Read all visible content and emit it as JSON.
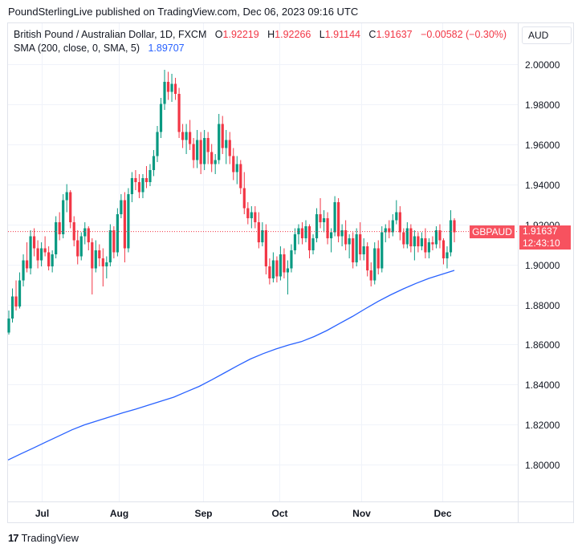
{
  "header": {
    "text": "PoundSterlingLive published on TradingView.com, Dec 06, 2023 09:16 UTC"
  },
  "legend": {
    "title": "British Pound / Australian Dollar, 1D, FXCM",
    "o_label": "O",
    "o_value": "1.92219",
    "h_label": "H",
    "h_value": "1.92266",
    "l_label": "L",
    "l_value": "1.91144",
    "c_label": "C",
    "c_value": "1.91637",
    "change": "−0.00582 (−0.30%)",
    "sma_label": "SMA (200, close, 0, SMA, 5)",
    "sma_value": "1.89707"
  },
  "currency_button": "AUD",
  "price_tag": {
    "price": "1.91637",
    "countdown": "12:43:10",
    "symbol": "GBPAUD"
  },
  "footer": {
    "brand": "TradingView",
    "logo_text": "17"
  },
  "colors": {
    "up": "#089981",
    "down": "#f23645",
    "sma": "#2962ff",
    "grid": "#f0f3fa"
  },
  "chart_data": {
    "type": "candlestick",
    "title": "British Pound / Australian Dollar, 1D, FXCM",
    "y_ticks": [
      "2.00000",
      "1.98000",
      "1.96000",
      "1.94000",
      "1.92000",
      "1.90000",
      "1.88000",
      "1.86000",
      "1.84000",
      "1.82000",
      "1.80000"
    ],
    "ylim": [
      1.7825,
      2.0075
    ],
    "x_ticks": [
      "Jul",
      "Aug",
      "Sep",
      "Oct",
      "Nov",
      "Dec"
    ],
    "last_price": 1.91637,
    "ohlc": [
      [
        1.866,
        1.877,
        1.865,
        1.873
      ],
      [
        1.873,
        1.888,
        1.871,
        1.884
      ],
      [
        1.884,
        1.892,
        1.877,
        1.879
      ],
      [
        1.879,
        1.896,
        1.878,
        1.892
      ],
      [
        1.892,
        1.905,
        1.889,
        1.902
      ],
      [
        1.902,
        1.911,
        1.896,
        1.898
      ],
      [
        1.898,
        1.917,
        1.895,
        1.914
      ],
      [
        1.914,
        1.918,
        1.904,
        1.908
      ],
      [
        1.908,
        1.912,
        1.898,
        1.902
      ],
      [
        1.902,
        1.911,
        1.899,
        1.908
      ],
      [
        1.908,
        1.914,
        1.904,
        1.906
      ],
      [
        1.906,
        1.909,
        1.897,
        1.899
      ],
      [
        1.899,
        1.907,
        1.896,
        1.905
      ],
      [
        1.905,
        1.924,
        1.903,
        1.921
      ],
      [
        1.921,
        1.926,
        1.912,
        1.915
      ],
      [
        1.915,
        1.935,
        1.913,
        1.932
      ],
      [
        1.932,
        1.94,
        1.926,
        1.936
      ],
      [
        1.936,
        1.937,
        1.918,
        1.921
      ],
      [
        1.921,
        1.924,
        1.909,
        1.912
      ],
      [
        1.912,
        1.917,
        1.9,
        1.904
      ],
      [
        1.904,
        1.916,
        1.902,
        1.914
      ],
      [
        1.914,
        1.921,
        1.91,
        1.918
      ],
      [
        1.918,
        1.919,
        1.907,
        1.911
      ],
      [
        1.911,
        1.913,
        1.885,
        1.898
      ],
      [
        1.898,
        1.912,
        1.896,
        1.907
      ],
      [
        1.907,
        1.91,
        1.899,
        1.903
      ],
      [
        1.903,
        1.908,
        1.889,
        1.899
      ],
      [
        1.899,
        1.904,
        1.893,
        1.901
      ],
      [
        1.901,
        1.92,
        1.899,
        1.917
      ],
      [
        1.917,
        1.919,
        1.903,
        1.906
      ],
      [
        1.906,
        1.928,
        1.904,
        1.925
      ],
      [
        1.925,
        1.935,
        1.923,
        1.932
      ],
      [
        1.932,
        1.936,
        1.901,
        1.908
      ],
      [
        1.908,
        1.938,
        1.906,
        1.935
      ],
      [
        1.935,
        1.946,
        1.931,
        1.943
      ],
      [
        1.943,
        1.947,
        1.937,
        1.941
      ],
      [
        1.941,
        1.945,
        1.933,
        1.936
      ],
      [
        1.936,
        1.945,
        1.933,
        1.943
      ],
      [
        1.943,
        1.949,
        1.938,
        1.941
      ],
      [
        1.941,
        1.95,
        1.939,
        1.947
      ],
      [
        1.947,
        1.957,
        1.944,
        1.954
      ],
      [
        1.954,
        1.969,
        1.951,
        1.966
      ],
      [
        1.966,
        1.983,
        1.963,
        1.98
      ],
      [
        1.98,
        1.997,
        1.977,
        1.991
      ],
      [
        1.991,
        1.996,
        1.982,
        1.986
      ],
      [
        1.986,
        1.995,
        1.981,
        1.99
      ],
      [
        1.99,
        1.993,
        1.982,
        1.985
      ],
      [
        1.985,
        1.988,
        1.963,
        1.966
      ],
      [
        1.966,
        1.97,
        1.958,
        1.962
      ],
      [
        1.962,
        1.97,
        1.955,
        1.966
      ],
      [
        1.966,
        1.972,
        1.957,
        1.96
      ],
      [
        1.96,
        1.963,
        1.948,
        1.952
      ],
      [
        1.952,
        1.967,
        1.948,
        1.962
      ],
      [
        1.962,
        1.966,
        1.945,
        1.95
      ],
      [
        1.95,
        1.967,
        1.947,
        1.963
      ],
      [
        1.963,
        1.966,
        1.95,
        1.956
      ],
      [
        1.956,
        1.96,
        1.946,
        1.95
      ],
      [
        1.95,
        1.955,
        1.945,
        1.952
      ],
      [
        1.952,
        1.975,
        1.95,
        1.97
      ],
      [
        1.97,
        1.974,
        1.955,
        1.958
      ],
      [
        1.958,
        1.967,
        1.95,
        1.962
      ],
      [
        1.962,
        1.966,
        1.95,
        1.954
      ],
      [
        1.954,
        1.958,
        1.942,
        1.946
      ],
      [
        1.946,
        1.954,
        1.94,
        1.95
      ],
      [
        1.95,
        1.952,
        1.935,
        1.938
      ],
      [
        1.938,
        1.946,
        1.925,
        1.928
      ],
      [
        1.928,
        1.931,
        1.92,
        1.923
      ],
      [
        1.923,
        1.929,
        1.918,
        1.926
      ],
      [
        1.926,
        1.929,
        1.918,
        1.921
      ],
      [
        1.921,
        1.926,
        1.908,
        1.911
      ],
      [
        1.911,
        1.921,
        1.909,
        1.917
      ],
      [
        1.917,
        1.92,
        1.895,
        1.899
      ],
      [
        1.899,
        1.903,
        1.89,
        1.893
      ],
      [
        1.893,
        1.906,
        1.891,
        1.902
      ],
      [
        1.902,
        1.904,
        1.891,
        1.894
      ],
      [
        1.894,
        1.909,
        1.892,
        1.905
      ],
      [
        1.905,
        1.908,
        1.893,
        1.896
      ],
      [
        1.896,
        1.902,
        1.885,
        1.898
      ],
      [
        1.898,
        1.91,
        1.896,
        1.907
      ],
      [
        1.907,
        1.918,
        1.905,
        1.915
      ],
      [
        1.915,
        1.92,
        1.91,
        1.918
      ],
      [
        1.918,
        1.921,
        1.91,
        1.913
      ],
      [
        1.913,
        1.922,
        1.911,
        1.919
      ],
      [
        1.919,
        1.92,
        1.903,
        1.907
      ],
      [
        1.907,
        1.915,
        1.905,
        1.913
      ],
      [
        1.913,
        1.928,
        1.911,
        1.925
      ],
      [
        1.925,
        1.933,
        1.918,
        1.921
      ],
      [
        1.921,
        1.927,
        1.916,
        1.923
      ],
      [
        1.923,
        1.926,
        1.91,
        1.913
      ],
      [
        1.913,
        1.918,
        1.906,
        1.916
      ],
      [
        1.916,
        1.934,
        1.914,
        1.931
      ],
      [
        1.931,
        1.933,
        1.911,
        1.914
      ],
      [
        1.914,
        1.92,
        1.909,
        1.917
      ],
      [
        1.917,
        1.922,
        1.907,
        1.91
      ],
      [
        1.91,
        1.915,
        1.903,
        1.913
      ],
      [
        1.913,
        1.916,
        1.898,
        1.901
      ],
      [
        1.901,
        1.918,
        1.899,
        1.915
      ],
      [
        1.915,
        1.921,
        1.902,
        1.905
      ],
      [
        1.905,
        1.913,
        1.902,
        1.909
      ],
      [
        1.909,
        1.911,
        1.894,
        1.897
      ],
      [
        1.897,
        1.901,
        1.889,
        1.892
      ],
      [
        1.892,
        1.911,
        1.89,
        1.908
      ],
      [
        1.908,
        1.912,
        1.895,
        1.898
      ],
      [
        1.898,
        1.919,
        1.896,
        1.916
      ],
      [
        1.916,
        1.92,
        1.911,
        1.918
      ],
      [
        1.918,
        1.922,
        1.913,
        1.916
      ],
      [
        1.916,
        1.925,
        1.914,
        1.922
      ],
      [
        1.922,
        1.932,
        1.92,
        1.926
      ],
      [
        1.926,
        1.929,
        1.912,
        1.916
      ],
      [
        1.916,
        1.918,
        1.908,
        1.91
      ],
      [
        1.91,
        1.921,
        1.908,
        1.918
      ],
      [
        1.918,
        1.92,
        1.906,
        1.909
      ],
      [
        1.909,
        1.917,
        1.902,
        1.914
      ],
      [
        1.914,
        1.916,
        1.906,
        1.909
      ],
      [
        1.909,
        1.916,
        1.907,
        1.913
      ],
      [
        1.913,
        1.918,
        1.903,
        1.906
      ],
      [
        1.906,
        1.913,
        1.903,
        1.911
      ],
      [
        1.911,
        1.914,
        1.907,
        1.91
      ],
      [
        1.91,
        1.919,
        1.908,
        1.917
      ],
      [
        1.917,
        1.92,
        1.908,
        1.912
      ],
      [
        1.912,
        1.913,
        1.9,
        1.903
      ],
      [
        1.903,
        1.909,
        1.898,
        1.906
      ],
      [
        1.906,
        1.927,
        1.904,
        1.922
      ],
      [
        1.922,
        1.923,
        1.911,
        1.916
      ]
    ],
    "sma": [
      1.8025,
      1.8055,
      1.8085,
      1.8115,
      1.8145,
      1.8175,
      1.82,
      1.822,
      1.824,
      1.826,
      1.8278,
      1.8298,
      1.8318,
      1.8338,
      1.8365,
      1.8392,
      1.8425,
      1.846,
      1.8495,
      1.8528,
      1.8555,
      1.8578,
      1.8598,
      1.8615,
      1.864,
      1.867,
      1.8705,
      1.874,
      1.8778,
      1.8815,
      1.8848,
      1.8878,
      1.8905,
      1.893,
      1.895,
      1.897
    ]
  }
}
